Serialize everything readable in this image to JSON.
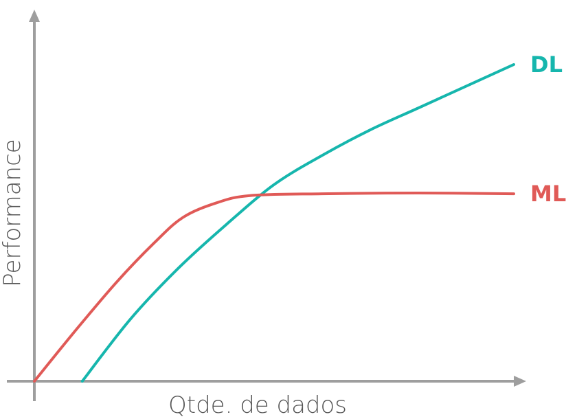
{
  "chart_data": {
    "type": "line",
    "title": "",
    "xlabel": "Qtde. de dados",
    "ylabel": "Performance",
    "xlim": [
      0,
      100
    ],
    "ylim": [
      0,
      100
    ],
    "grid": false,
    "legend": "end-of-line labels",
    "axis_color": "#9e9e9e",
    "series": [
      {
        "name": "DL",
        "color": "#16b6ad",
        "points": [
          [
            10,
            0
          ],
          [
            20,
            17
          ],
          [
            30,
            31
          ],
          [
            40,
            43
          ],
          [
            50,
            54
          ],
          [
            60,
            62
          ],
          [
            70,
            69
          ],
          [
            80,
            75
          ],
          [
            90,
            81
          ],
          [
            100,
            87
          ]
        ]
      },
      {
        "name": "ML",
        "color": "#e05a57",
        "points": [
          [
            0,
            0
          ],
          [
            8,
            13
          ],
          [
            17,
            27
          ],
          [
            25,
            38
          ],
          [
            31,
            45
          ],
          [
            38,
            49
          ],
          [
            45,
            51
          ],
          [
            60,
            51.5
          ],
          [
            80,
            51.7
          ],
          [
            100,
            51.5
          ]
        ]
      }
    ]
  }
}
